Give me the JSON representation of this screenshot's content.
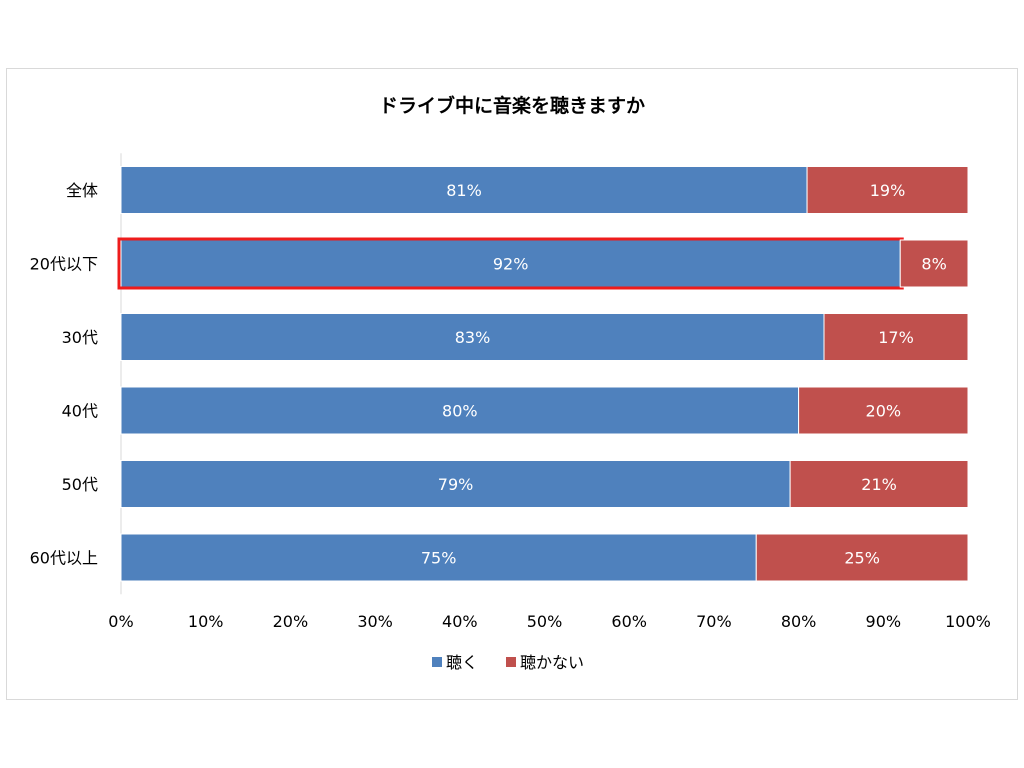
{
  "chart_data": {
    "type": "bar",
    "orientation": "horizontal",
    "stacked": true,
    "title": "ドライブ中に音楽を聴きますか",
    "categories": [
      "全体",
      "20代以下",
      "30代",
      "40代",
      "50代",
      "60代以上"
    ],
    "series": [
      {
        "name": "聴く",
        "color": "#4f81bd",
        "values": [
          81,
          92,
          83,
          80,
          79,
          75
        ],
        "labels": [
          "81%",
          "92%",
          "83%",
          "80%",
          "79%",
          "75%"
        ]
      },
      {
        "name": "聴かない",
        "color": "#c0504d",
        "values": [
          19,
          8,
          17,
          20,
          21,
          25
        ],
        "labels": [
          "19%",
          "8%",
          "17%",
          "20%",
          "21%",
          "25%"
        ]
      }
    ],
    "xlim": [
      0,
      100
    ],
    "x_ticks": [
      "0%",
      "10%",
      "20%",
      "30%",
      "40%",
      "50%",
      "60%",
      "70%",
      "80%",
      "90%",
      "100%"
    ],
    "legend_position": "bottom",
    "highlight": {
      "category": "20代以下",
      "series": "聴く",
      "color": "#ee1c1c"
    },
    "grid": false
  }
}
